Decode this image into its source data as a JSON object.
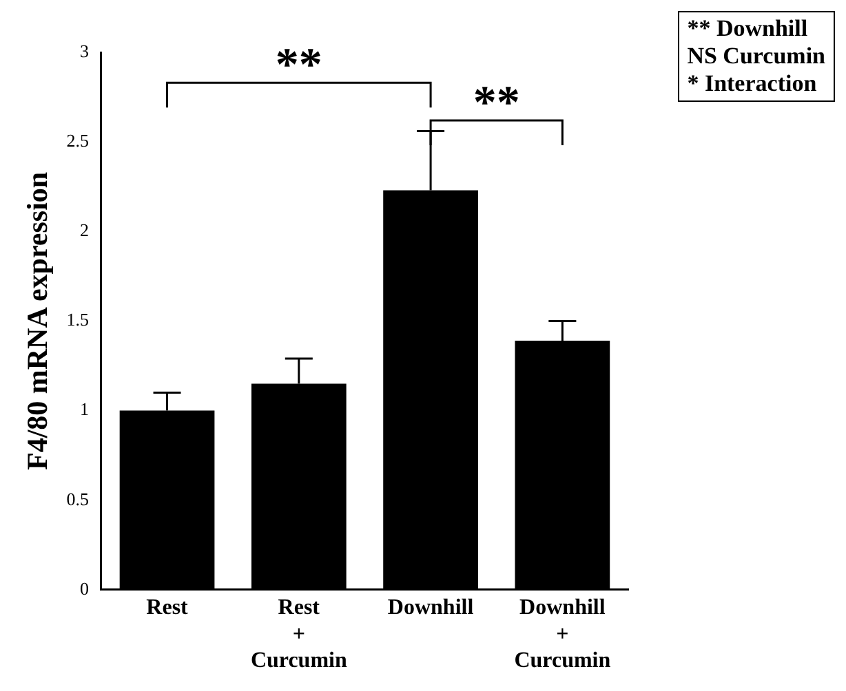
{
  "chart_data": {
    "type": "bar",
    "ylabel": "F4/80 mRNA expression",
    "categories": [
      "Rest",
      "Rest + Curcumin",
      "Downhill",
      "Downhill + Curcumin"
    ],
    "values": [
      1.0,
      1.15,
      2.23,
      1.39
    ],
    "errors": [
      [
        1.0,
        1.1
      ],
      [
        1.15,
        1.29
      ],
      [
        2.23,
        2.56
      ],
      [
        1.39,
        1.5
      ]
    ],
    "color": "#000000",
    "ylim": [
      0,
      3
    ],
    "yticks": [
      0,
      0.5,
      1,
      1.5,
      2,
      2.5,
      3
    ],
    "grid": false,
    "legend": false,
    "annotations": [
      "**",
      "**",
      "** Downhill",
      "NS Curcumin",
      "* Interaction"
    ]
  }
}
